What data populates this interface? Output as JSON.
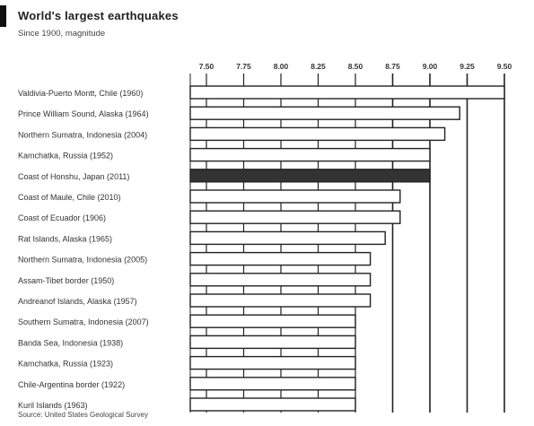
{
  "chart_data": {
    "type": "bar",
    "orientation": "horizontal",
    "title": "World's largest earthquakes",
    "subtitle": "Since 1900, magnitude",
    "source": "Source: United States Geological Survey",
    "categories": [
      "Valdivia-Puerto Montt, Chile (1960)",
      "Prince William Sound, Alaska (1964)",
      "Northern Sumatra, Indonesia (2004)",
      "Kamchatka, Russia (1952)",
      "Coast of Honshu, Japan (2011)",
      "Coast of Maule, Chile (2010)",
      "Coast of Ecuador (1906)",
      "Rat Islands, Alaska (1965)",
      "Northern Sumatra, Indonesia (2005)",
      "Assam-Tibet border (1950)",
      "Andreanof Islands, Alaska (1957)",
      "Southern Sumatra, Indonesia (2007)",
      "Banda Sea, Indonesia (1938)",
      "Kamchatka, Russia (1923)",
      "Chile-Argentina border (1922)",
      "Kuril Islands (1963)"
    ],
    "values": [
      9.5,
      9.2,
      9.1,
      9.0,
      9.0,
      8.8,
      8.8,
      8.7,
      8.6,
      8.6,
      8.6,
      8.5,
      8.5,
      8.5,
      8.5,
      8.5
    ],
    "highlight_index": 4,
    "xlim": [
      7.5,
      9.5
    ],
    "ticks": [
      "7.50",
      "7.75",
      "8.00",
      "8.25",
      "8.50",
      "8.75",
      "9.00",
      "9.25",
      "9.50"
    ],
    "tick_values": [
      7.5,
      7.75,
      8.0,
      8.25,
      8.5,
      8.75,
      9.0,
      9.25,
      9.5
    ],
    "grid": true,
    "colors": {
      "bar_fill": "#ffffff",
      "bar_highlight": "#333333",
      "bar_stroke": "#222222",
      "grid": "#222222"
    }
  }
}
